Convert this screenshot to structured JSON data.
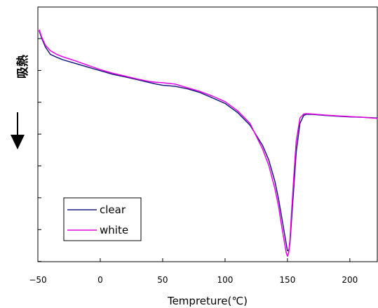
{
  "chart_data": {
    "type": "line",
    "title": "",
    "xlabel": "Tempreture(℃)",
    "ylabel": "吸熱",
    "ylim": [
      0,
      7
    ],
    "xlim": [
      -50,
      222
    ],
    "xticks": [
      -50,
      0,
      50,
      100,
      150,
      200
    ],
    "grid": false,
    "legend_position": "bottom-left",
    "series": [
      {
        "name": "clear",
        "color": "#1a1a80",
        "x": [
          -49,
          -47,
          -44,
          -40,
          -35,
          -30,
          -20,
          -10,
          0,
          10,
          20,
          30,
          40,
          45,
          50,
          60,
          70,
          80,
          90,
          100,
          110,
          120,
          130,
          135,
          140,
          143,
          145,
          147,
          149,
          150,
          151,
          152,
          153,
          155,
          157,
          160,
          163,
          165,
          170,
          180,
          190,
          200,
          210,
          222
        ],
        "y": [
          6.35,
          6.15,
          5.9,
          5.7,
          5.62,
          5.55,
          5.45,
          5.35,
          5.25,
          5.15,
          5.08,
          5.0,
          4.92,
          4.88,
          4.85,
          4.82,
          4.75,
          4.65,
          4.5,
          4.35,
          4.1,
          3.75,
          3.2,
          2.8,
          2.2,
          1.7,
          1.3,
          0.9,
          0.5,
          0.3,
          0.3,
          0.5,
          1.0,
          2.0,
          3.0,
          3.8,
          4.02,
          4.05,
          4.05,
          4.02,
          4.0,
          3.98,
          3.97,
          3.95
        ]
      },
      {
        "name": "white",
        "color": "#e600e6",
        "x": [
          -49,
          -47,
          -44,
          -40,
          -35,
          -30,
          -20,
          -10,
          0,
          10,
          20,
          30,
          40,
          45,
          50,
          60,
          70,
          80,
          90,
          100,
          110,
          120,
          130,
          135,
          140,
          143,
          145,
          147,
          149,
          150,
          151,
          152,
          153,
          155,
          157,
          160,
          163,
          165,
          170,
          180,
          190,
          200,
          210,
          222
        ],
        "y": [
          6.38,
          6.18,
          5.95,
          5.8,
          5.7,
          5.63,
          5.52,
          5.4,
          5.28,
          5.18,
          5.1,
          5.02,
          4.95,
          4.93,
          4.92,
          4.88,
          4.78,
          4.68,
          4.55,
          4.4,
          4.15,
          3.8,
          3.1,
          2.65,
          2.0,
          1.5,
          1.05,
          0.65,
          0.25,
          0.15,
          0.25,
          0.6,
          1.2,
          2.3,
          3.3,
          3.95,
          4.06,
          4.07,
          4.06,
          4.03,
          4.01,
          3.99,
          3.97,
          3.94
        ]
      }
    ]
  }
}
